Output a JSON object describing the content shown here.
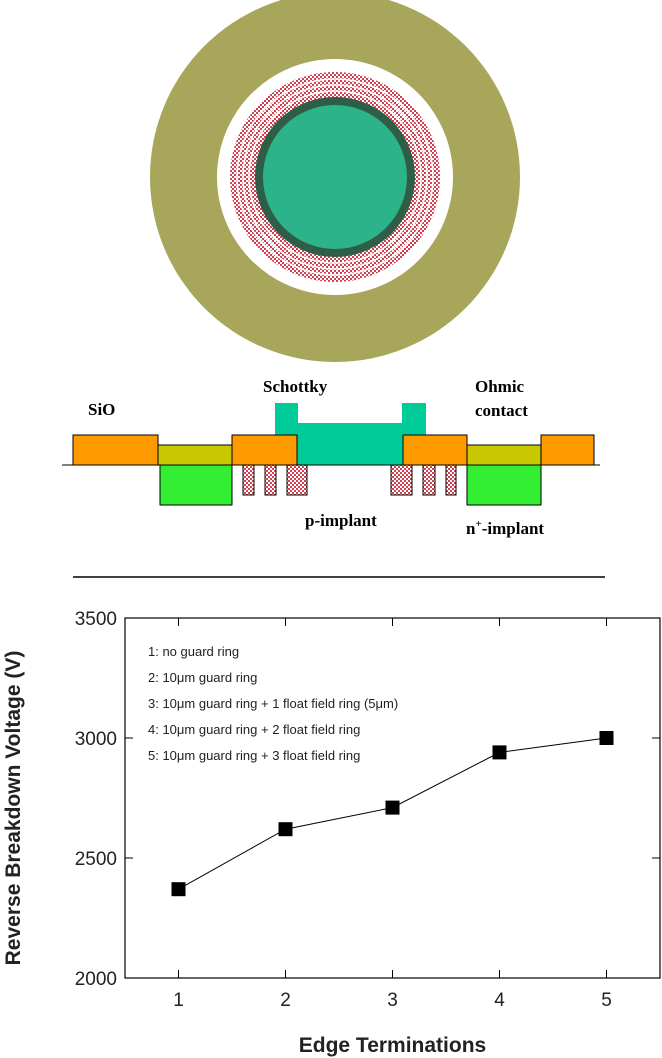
{
  "diagram": {
    "labels": {
      "sio": "SiO",
      "schottky": "Schottky",
      "ohmic": [
        "Ohmic",
        "contact"
      ],
      "p_implant": "p-implant",
      "n_implant": {
        "base": "n",
        "sup": "+",
        "rest": "-implant"
      }
    }
  },
  "chart_data": {
    "type": "line",
    "x_label": "Edge Terminations",
    "y_label": "Reverse Breakdown Voltage (V)",
    "x": [
      1,
      2,
      3,
      4,
      5
    ],
    "series": [
      {
        "color": "#000000",
        "values": [
          2370,
          2620,
          2710,
          2940,
          3000
        ]
      }
    ],
    "annotations": [
      "1: no guard ring",
      "2: 10μm guard ring",
      "3: 10μm guard ring + 1 float field ring (5μm)",
      "4: 10μm guard ring + 2 float field ring",
      "5: 10μm guard ring + 3 float field ring"
    ],
    "xlim": [
      0.5,
      5.5
    ],
    "xticks": [
      1,
      2,
      3,
      4,
      5
    ],
    "ylim": [
      2000,
      3500
    ],
    "yticks": [
      2000,
      2500,
      3000,
      3500
    ]
  }
}
